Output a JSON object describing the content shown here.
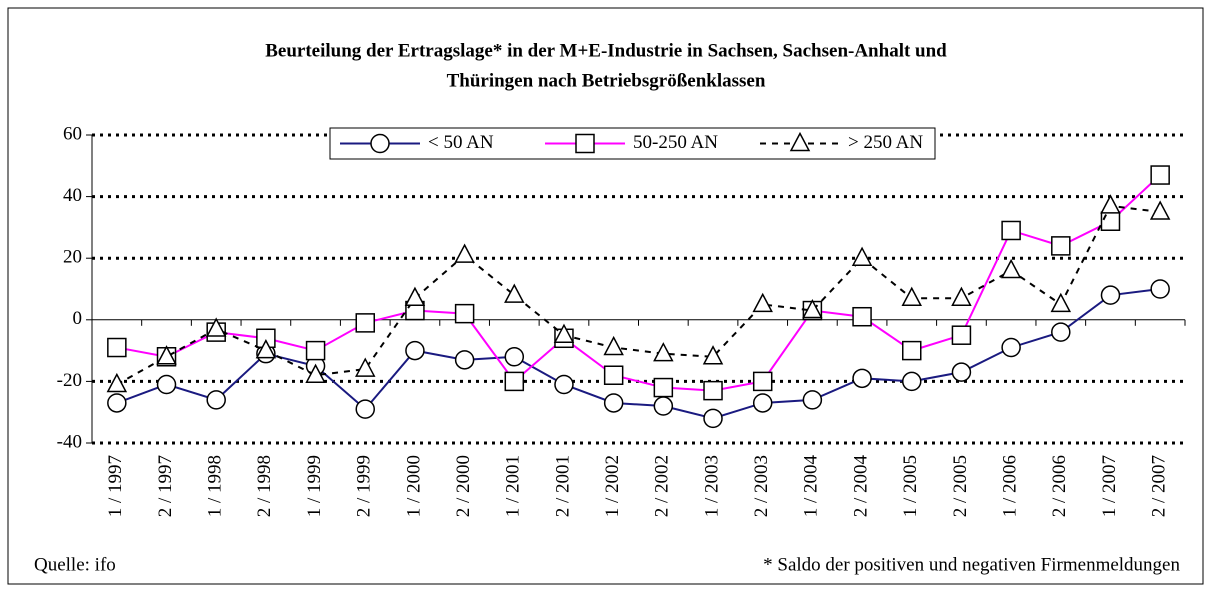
{
  "chart_data": {
    "type": "line",
    "title": [
      "Beurteilung der Ertragslage* in der M+E-Industrie in Sachsen, Sachsen-Anhalt und",
      "Thüringen nach Betriebsgrößenklassen"
    ],
    "categories": [
      "1 / 1997",
      "2 / 1997",
      "1 / 1998",
      "2 / 1998",
      "1 / 1999",
      "2 / 1999",
      "1 / 2000",
      "2 / 2000",
      "1 / 2001",
      "2 / 2001",
      "1 / 2002",
      "2 / 2002",
      "1 / 2003",
      "2 / 2003",
      "1 / 2004",
      "2 / 2004",
      "1 / 2005",
      "2 / 2005",
      "1 / 2006",
      "2 / 2006",
      "1 / 2007",
      "2 / 2007"
    ],
    "series": [
      {
        "name": "< 50 AN",
        "color": "#1a1a80",
        "dash": "solid",
        "marker": "circle",
        "values": [
          -27,
          -21,
          -26,
          -11,
          -15,
          -29,
          -10,
          -13,
          -12,
          -21,
          -27,
          -28,
          -32,
          -27,
          -26,
          -19,
          -20,
          -17,
          -9,
          -4,
          8,
          10
        ]
      },
      {
        "name": "50-250 AN",
        "color": "#ff00ff",
        "dash": "solid",
        "marker": "square",
        "values": [
          -9,
          -12,
          -4,
          -6,
          -10,
          -1,
          3,
          2,
          -20,
          -6,
          -18,
          -22,
          -23,
          -20,
          3,
          1,
          -10,
          -5,
          29,
          24,
          32,
          47
        ]
      },
      {
        "name": "> 250 AN",
        "color": "#000000",
        "dash": "dashed",
        "marker": "triangle",
        "values": [
          -21,
          -12,
          -3,
          -10,
          -18,
          -16,
          7,
          21,
          8,
          -5,
          -9,
          -11,
          -12,
          5,
          3,
          20,
          7,
          7,
          16,
          5,
          37,
          35
        ]
      }
    ],
    "ylim": [
      -40,
      60
    ],
    "yticks": [
      -40,
      -20,
      0,
      20,
      40,
      60
    ],
    "grid": true,
    "legend": "top",
    "source": "Quelle: ifo",
    "footnote": "* Saldo der positiven und negativen Firmenmeldungen"
  }
}
